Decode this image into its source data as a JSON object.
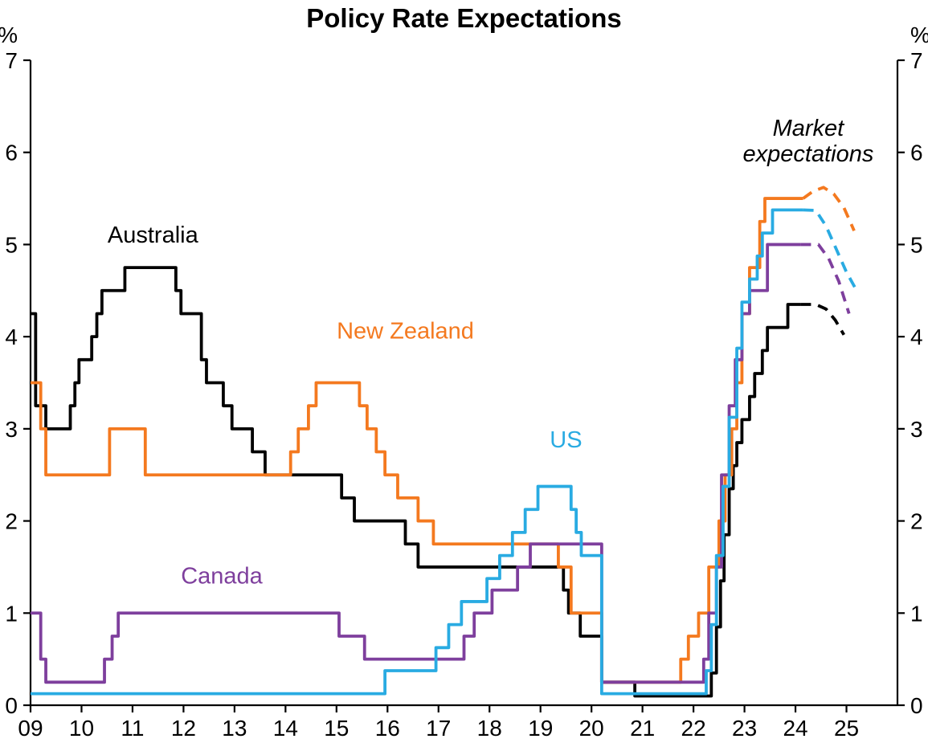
{
  "title": "Policy Rate Expectations",
  "chart_data": {
    "type": "line",
    "title": "Policy Rate Expectations",
    "unit": "%",
    "interpolation": "step-after",
    "grid": false,
    "legend": "inline-annotations",
    "x_min": 2009,
    "x_max": 2026,
    "y_min": 0,
    "y_max": 7,
    "y_ticks": [
      0,
      1,
      2,
      3,
      4,
      5,
      6,
      7
    ],
    "x_tick_values": [
      2009,
      2010,
      2011,
      2012,
      2013,
      2014,
      2015,
      2016,
      2017,
      2018,
      2019,
      2020,
      2021,
      2022,
      2023,
      2024,
      2025
    ],
    "x_tick_labels": [
      "09",
      "10",
      "11",
      "12",
      "13",
      "14",
      "15",
      "16",
      "17",
      "18",
      "19",
      "20",
      "21",
      "22",
      "23",
      "24",
      "25"
    ],
    "series": [
      {
        "name": "Australia",
        "color": "#000000",
        "solid": [
          [
            2009.0,
            4.25
          ],
          [
            2009.1,
            3.25
          ],
          [
            2009.3,
            3.0
          ],
          [
            2009.78,
            3.25
          ],
          [
            2009.87,
            3.5
          ],
          [
            2009.95,
            3.75
          ],
          [
            2010.2,
            4.0
          ],
          [
            2010.3,
            4.25
          ],
          [
            2010.4,
            4.5
          ],
          [
            2010.85,
            4.75
          ],
          [
            2011.85,
            4.5
          ],
          [
            2011.95,
            4.25
          ],
          [
            2012.35,
            3.75
          ],
          [
            2012.45,
            3.5
          ],
          [
            2012.78,
            3.25
          ],
          [
            2012.95,
            3.0
          ],
          [
            2013.35,
            2.75
          ],
          [
            2013.6,
            2.5
          ],
          [
            2015.1,
            2.25
          ],
          [
            2015.35,
            2.0
          ],
          [
            2016.35,
            1.75
          ],
          [
            2016.6,
            1.5
          ],
          [
            2019.45,
            1.25
          ],
          [
            2019.55,
            1.0
          ],
          [
            2019.78,
            0.75
          ],
          [
            2020.2,
            0.25
          ],
          [
            2020.85,
            0.1
          ],
          [
            2022.35,
            0.35
          ],
          [
            2022.45,
            0.85
          ],
          [
            2022.53,
            1.35
          ],
          [
            2022.6,
            1.85
          ],
          [
            2022.7,
            2.35
          ],
          [
            2022.78,
            2.6
          ],
          [
            2022.85,
            2.85
          ],
          [
            2022.95,
            3.1
          ],
          [
            2023.1,
            3.35
          ],
          [
            2023.2,
            3.6
          ],
          [
            2023.35,
            3.85
          ],
          [
            2023.45,
            4.1
          ],
          [
            2023.85,
            4.35
          ],
          [
            2024.1,
            4.35
          ]
        ],
        "expected_dashed": [
          [
            2024.1,
            4.35
          ],
          [
            2024.4,
            4.35
          ],
          [
            2024.6,
            4.3
          ],
          [
            2024.78,
            4.18
          ],
          [
            2024.95,
            4.02
          ]
        ]
      },
      {
        "name": "New Zealand",
        "color": "#f4791f",
        "solid": [
          [
            2009.0,
            3.5
          ],
          [
            2009.2,
            3.0
          ],
          [
            2009.3,
            2.5
          ],
          [
            2010.55,
            3.0
          ],
          [
            2011.25,
            2.5
          ],
          [
            2014.1,
            2.75
          ],
          [
            2014.25,
            3.0
          ],
          [
            2014.45,
            3.25
          ],
          [
            2014.6,
            3.5
          ],
          [
            2015.45,
            3.25
          ],
          [
            2015.6,
            3.0
          ],
          [
            2015.78,
            2.75
          ],
          [
            2015.95,
            2.5
          ],
          [
            2016.2,
            2.25
          ],
          [
            2016.6,
            2.0
          ],
          [
            2016.9,
            1.75
          ],
          [
            2019.35,
            1.5
          ],
          [
            2019.6,
            1.0
          ],
          [
            2020.2,
            0.25
          ],
          [
            2021.75,
            0.5
          ],
          [
            2021.9,
            0.75
          ],
          [
            2022.1,
            1.0
          ],
          [
            2022.3,
            1.5
          ],
          [
            2022.5,
            2.0
          ],
          [
            2022.62,
            2.5
          ],
          [
            2022.75,
            3.0
          ],
          [
            2022.85,
            3.5
          ],
          [
            2022.95,
            4.25
          ],
          [
            2023.1,
            4.75
          ],
          [
            2023.3,
            5.25
          ],
          [
            2023.4,
            5.5
          ],
          [
            2024.15,
            5.5
          ]
        ],
        "expected_dashed": [
          [
            2024.15,
            5.5
          ],
          [
            2024.35,
            5.58
          ],
          [
            2024.55,
            5.62
          ],
          [
            2024.75,
            5.55
          ],
          [
            2024.95,
            5.4
          ],
          [
            2025.15,
            5.15
          ]
        ]
      },
      {
        "name": "Canada",
        "color": "#7e3f9d",
        "solid": [
          [
            2009.0,
            1.0
          ],
          [
            2009.2,
            0.5
          ],
          [
            2009.3,
            0.25
          ],
          [
            2010.45,
            0.5
          ],
          [
            2010.6,
            0.75
          ],
          [
            2010.72,
            1.0
          ],
          [
            2015.05,
            0.75
          ],
          [
            2015.55,
            0.5
          ],
          [
            2017.5,
            0.75
          ],
          [
            2017.7,
            1.0
          ],
          [
            2018.05,
            1.25
          ],
          [
            2018.55,
            1.5
          ],
          [
            2018.8,
            1.75
          ],
          [
            2020.2,
            0.25
          ],
          [
            2022.2,
            0.5
          ],
          [
            2022.3,
            1.0
          ],
          [
            2022.45,
            1.5
          ],
          [
            2022.55,
            2.5
          ],
          [
            2022.7,
            3.25
          ],
          [
            2022.82,
            3.75
          ],
          [
            2022.95,
            4.25
          ],
          [
            2023.1,
            4.5
          ],
          [
            2023.45,
            5.0
          ],
          [
            2024.1,
            5.0
          ]
        ],
        "expected_dashed": [
          [
            2024.1,
            5.0
          ],
          [
            2024.45,
            5.0
          ],
          [
            2024.65,
            4.85
          ],
          [
            2024.85,
            4.6
          ],
          [
            2025.05,
            4.25
          ]
        ]
      },
      {
        "name": "US",
        "color": "#29abe2",
        "solid": [
          [
            2009.0,
            0.125
          ],
          [
            2015.95,
            0.375
          ],
          [
            2016.95,
            0.625
          ],
          [
            2017.2,
            0.875
          ],
          [
            2017.45,
            1.125
          ],
          [
            2017.95,
            1.375
          ],
          [
            2018.2,
            1.625
          ],
          [
            2018.45,
            1.875
          ],
          [
            2018.7,
            2.125
          ],
          [
            2018.95,
            2.375
          ],
          [
            2019.6,
            2.125
          ],
          [
            2019.7,
            1.875
          ],
          [
            2019.8,
            1.625
          ],
          [
            2020.2,
            0.125
          ],
          [
            2022.25,
            0.375
          ],
          [
            2022.35,
            0.875
          ],
          [
            2022.45,
            1.625
          ],
          [
            2022.58,
            2.375
          ],
          [
            2022.7,
            3.125
          ],
          [
            2022.85,
            3.875
          ],
          [
            2022.95,
            4.375
          ],
          [
            2023.1,
            4.625
          ],
          [
            2023.25,
            4.875
          ],
          [
            2023.35,
            5.125
          ],
          [
            2023.55,
            5.375
          ],
          [
            2024.15,
            5.375
          ]
        ],
        "expected_dashed": [
          [
            2024.15,
            5.375
          ],
          [
            2024.4,
            5.37
          ],
          [
            2024.6,
            5.2
          ],
          [
            2024.8,
            4.95
          ],
          [
            2025.0,
            4.7
          ],
          [
            2025.2,
            4.5
          ]
        ]
      }
    ],
    "annotations": [
      {
        "text": "Australia",
        "x": 2011.4,
        "y": 5.02,
        "color": "#000000",
        "italic": false
      },
      {
        "text": "New Zealand",
        "x": 2016.35,
        "y": 3.98,
        "color": "#f4791f",
        "italic": false
      },
      {
        "text": "US",
        "x": 2019.5,
        "y": 2.8,
        "color": "#29abe2",
        "italic": false
      },
      {
        "text": "Canada",
        "x": 2012.75,
        "y": 1.32,
        "color": "#7e3f9d",
        "italic": false
      },
      {
        "text": "Market\nexpectations",
        "x": 2024.25,
        "y": 6.18,
        "color": "#000000",
        "italic": true
      }
    ]
  }
}
